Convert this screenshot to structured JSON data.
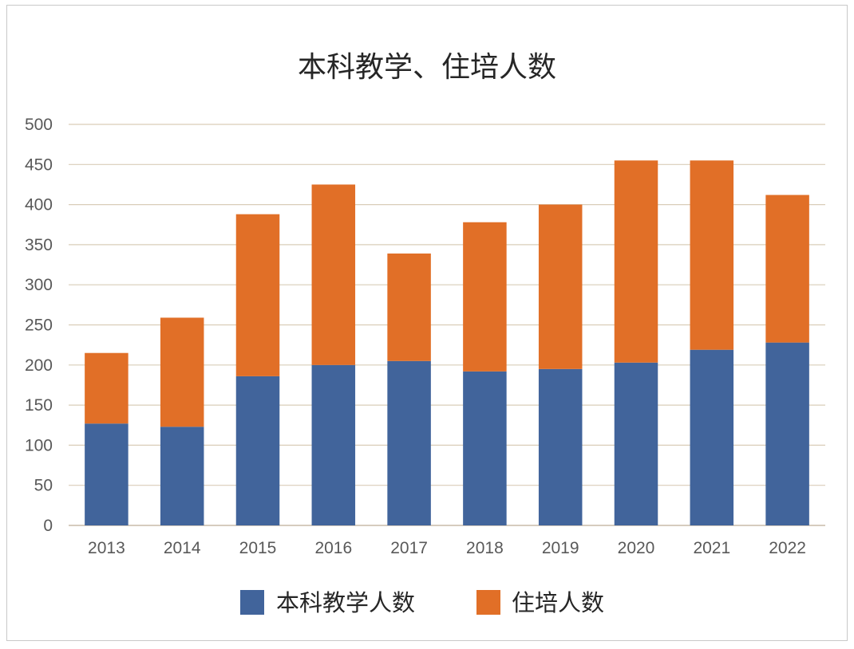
{
  "chart_data": {
    "type": "bar",
    "stacked": true,
    "title": "本科教学、住培人数",
    "categories": [
      "2013",
      "2014",
      "2015",
      "2016",
      "2017",
      "2018",
      "2019",
      "2020",
      "2021",
      "2022"
    ],
    "series": [
      {
        "name": "本科教学人数",
        "color": "#41649b",
        "values": [
          127,
          123,
          186,
          200,
          205,
          192,
          195,
          203,
          219,
          228
        ]
      },
      {
        "name": "住培人数",
        "color": "#e16f27",
        "values": [
          88,
          136,
          202,
          225,
          134,
          186,
          205,
          252,
          236,
          184
        ]
      }
    ],
    "ylim": [
      0,
      500
    ],
    "yticks": [
      "0",
      "50",
      "100",
      "150",
      "200",
      "250",
      "300",
      "350",
      "400",
      "450",
      "500"
    ],
    "grid": true,
    "legend": "bottom"
  }
}
